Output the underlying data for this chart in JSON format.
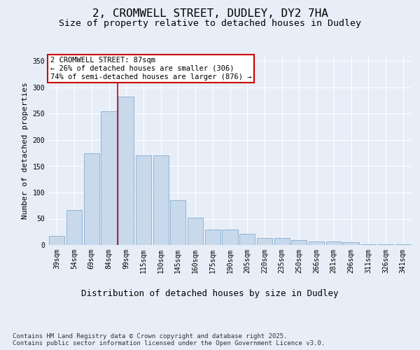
{
  "title": "2, CROMWELL STREET, DUDLEY, DY2 7HA",
  "subtitle": "Size of property relative to detached houses in Dudley",
  "xlabel": "Distribution of detached houses by size in Dudley",
  "ylabel": "Number of detached properties",
  "categories": [
    "39sqm",
    "54sqm",
    "69sqm",
    "84sqm",
    "99sqm",
    "115sqm",
    "130sqm",
    "145sqm",
    "160sqm",
    "175sqm",
    "190sqm",
    "205sqm",
    "220sqm",
    "235sqm",
    "250sqm",
    "266sqm",
    "281sqm",
    "296sqm",
    "311sqm",
    "326sqm",
    "341sqm"
  ],
  "values": [
    18,
    67,
    175,
    255,
    283,
    170,
    170,
    85,
    52,
    29,
    29,
    21,
    14,
    14,
    9,
    7,
    7,
    5,
    1,
    1,
    2
  ],
  "bar_color": "#c9d9ec",
  "bar_edge_color": "#8fb4d4",
  "bar_edge_width": 0.7,
  "vline_x": 3.5,
  "vline_color": "#cc0000",
  "annotation_box_text": "2 CROMWELL STREET: 87sqm\n← 26% of detached houses are smaller (306)\n74% of semi-detached houses are larger (876) →",
  "annotation_box_color": "#cc0000",
  "annotation_bg": "white",
  "ylim": [
    0,
    360
  ],
  "yticks": [
    0,
    50,
    100,
    150,
    200,
    250,
    300,
    350
  ],
  "title_fontsize": 11.5,
  "subtitle_fontsize": 9.5,
  "xlabel_fontsize": 9,
  "ylabel_fontsize": 8,
  "tick_fontsize": 7,
  "annotation_fontsize": 7.5,
  "footer_text": "Contains HM Land Registry data © Crown copyright and database right 2025.\nContains public sector information licensed under the Open Government Licence v3.0.",
  "footer_fontsize": 6.5,
  "bg_color": "#e8eef8",
  "plot_bg_color": "#e8eef8",
  "grid_color": "#ffffff"
}
